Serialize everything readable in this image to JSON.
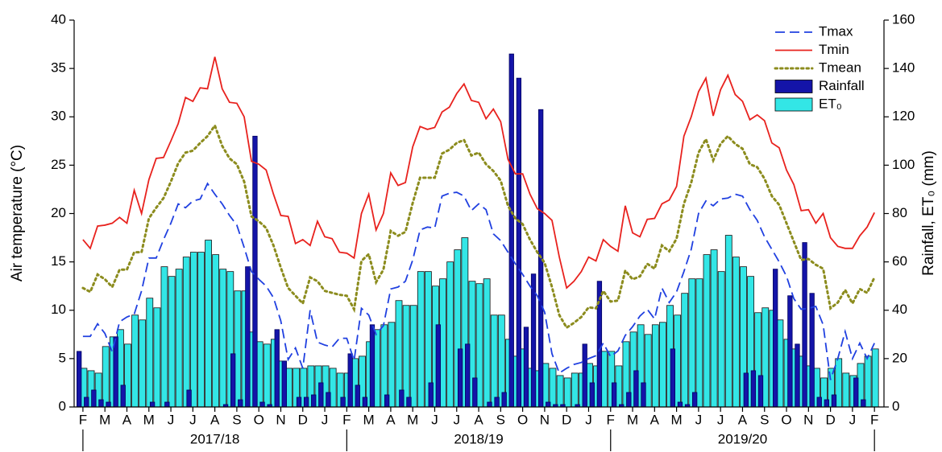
{
  "chart_data": {
    "type": "combo",
    "y_label": "Air temperature (°C)",
    "y2_label": "Rainfall, ET₀ (mm)",
    "legend": "upper right",
    "x": [
      0,
      1,
      2,
      3,
      4,
      5,
      6,
      7,
      8,
      9,
      10,
      11,
      12,
      13,
      14,
      15,
      16,
      17,
      18,
      19,
      20,
      21,
      22,
      23,
      24,
      25,
      26,
      27,
      28,
      29,
      30,
      31,
      32,
      33,
      34,
      35,
      36,
      37,
      38,
      39,
      40,
      41,
      42,
      43,
      44,
      45,
      46,
      47,
      48,
      49,
      50,
      51,
      52,
      53,
      54,
      55,
      56,
      57,
      58,
      59,
      60,
      61,
      62,
      63,
      64,
      65,
      66,
      67,
      68,
      69,
      70,
      71,
      72,
      73,
      74,
      75,
      76,
      77,
      78,
      79,
      80,
      81,
      82,
      83,
      84,
      85,
      86,
      87,
      88,
      89,
      90,
      91,
      92,
      93,
      94,
      95,
      96,
      97,
      98,
      99,
      100,
      101,
      102,
      103,
      104,
      105,
      106,
      107,
      108
    ],
    "xlim": [
      -1.2,
      109.3
    ],
    "xticks": [
      {
        "value": 0,
        "label": "F"
      },
      {
        "value": 3,
        "label": "M"
      },
      {
        "value": 6,
        "label": "A"
      },
      {
        "value": 9,
        "label": "M"
      },
      {
        "value": 12,
        "label": "J"
      },
      {
        "value": 15,
        "label": "J"
      },
      {
        "value": 18,
        "label": "A"
      },
      {
        "value": 21,
        "label": "S"
      },
      {
        "value": 24,
        "label": "O"
      },
      {
        "value": 27,
        "label": "N"
      },
      {
        "value": 30,
        "label": "D"
      },
      {
        "value": 33,
        "label": "J"
      },
      {
        "value": 36,
        "label": "F"
      },
      {
        "value": 39,
        "label": "M"
      },
      {
        "value": 42,
        "label": "A"
      },
      {
        "value": 45,
        "label": "M"
      },
      {
        "value": 48,
        "label": "J"
      },
      {
        "value": 51,
        "label": "J"
      },
      {
        "value": 54,
        "label": "A"
      },
      {
        "value": 57,
        "label": "S"
      },
      {
        "value": 60,
        "label": "O"
      },
      {
        "value": 63,
        "label": "N"
      },
      {
        "value": 66,
        "label": "D"
      },
      {
        "value": 69,
        "label": "J"
      },
      {
        "value": 72,
        "label": "F"
      },
      {
        "value": 75,
        "label": "M"
      },
      {
        "value": 78,
        "label": "A"
      },
      {
        "value": 81,
        "label": "M"
      },
      {
        "value": 84,
        "label": "J"
      },
      {
        "value": 87,
        "label": "J"
      },
      {
        "value": 90,
        "label": "A"
      },
      {
        "value": 93,
        "label": "S"
      },
      {
        "value": 96,
        "label": "O"
      },
      {
        "value": 99,
        "label": "N"
      },
      {
        "value": 102,
        "label": "D"
      },
      {
        "value": 105,
        "label": "J"
      },
      {
        "value": 108,
        "label": "F"
      }
    ],
    "seasons": [
      "2017/18",
      "2018/19",
      "2019/20"
    ],
    "ylim": [
      0,
      40
    ],
    "yticks": [
      0,
      5,
      10,
      15,
      20,
      25,
      30,
      35,
      40
    ],
    "y2lim": [
      0,
      160
    ],
    "y2ticks": [
      0,
      20,
      40,
      60,
      80,
      100,
      120,
      140,
      160
    ],
    "series": [
      {
        "name": "ET₀",
        "type": "bar",
        "axis": "y2",
        "color": "#33e6e6",
        "values": [
          16,
          15,
          14,
          25,
          29,
          32,
          26,
          38,
          36,
          45,
          41,
          58,
          54,
          57,
          62,
          64,
          64,
          69,
          63,
          57,
          56,
          48,
          48,
          31,
          27,
          26,
          28,
          19,
          16,
          16,
          16,
          17,
          17,
          17,
          16,
          14,
          14,
          20,
          21,
          27,
          32,
          34,
          35,
          44,
          42,
          42,
          56,
          56,
          50,
          53,
          60,
          65,
          70,
          52,
          51,
          53,
          38,
          38,
          28,
          21,
          24,
          16,
          15,
          18,
          16,
          13,
          12,
          14,
          14,
          18,
          17,
          23,
          23,
          17,
          27,
          31,
          34,
          30,
          34,
          35,
          42,
          38,
          47,
          53,
          53,
          63,
          65,
          56,
          71,
          62,
          58,
          54,
          39,
          41,
          40,
          36,
          28,
          24,
          21,
          17,
          16,
          12,
          16,
          20,
          14,
          13,
          18,
          21,
          24
        ]
      },
      {
        "name": "Rainfall",
        "type": "bar",
        "axis": "y2",
        "color": "#1414a8",
        "values": [
          23,
          4,
          7,
          3,
          2,
          29,
          9,
          0,
          0,
          0,
          2,
          0,
          2,
          0,
          0,
          7,
          0,
          0,
          0,
          0,
          1,
          22,
          3,
          58,
          112,
          2,
          1,
          32,
          19,
          0,
          4,
          4,
          5,
          10,
          6,
          0,
          4,
          22,
          9,
          4,
          34,
          0,
          5,
          0,
          7,
          4,
          0,
          0,
          10,
          34,
          0,
          0,
          24,
          26,
          12,
          0,
          2,
          4,
          6,
          146,
          136,
          33,
          55,
          123,
          2,
          1,
          1,
          0,
          1,
          26,
          10,
          52,
          0,
          10,
          1,
          6,
          15,
          10,
          0,
          0,
          0,
          24,
          2,
          1,
          6,
          0,
          0,
          0,
          0,
          0,
          0,
          14,
          15,
          13,
          0,
          57,
          0,
          46,
          26,
          68,
          47,
          4,
          3,
          5,
          0,
          0,
          12,
          3,
          0
        ]
      },
      {
        "name": "Tmax",
        "type": "line",
        "style": "dashed",
        "color": "#2040e0",
        "values": [
          7.3,
          7.3,
          8.6,
          7.6,
          5.7,
          8.8,
          9.3,
          9.6,
          12.0,
          15.4,
          15.4,
          17.3,
          19.0,
          21.0,
          20.6,
          21.3,
          21.5,
          23.1,
          22.0,
          21.0,
          19.8,
          18.8,
          16.5,
          14.0,
          13.2,
          12.5,
          11.3,
          8.9,
          4.9,
          6.1,
          4.0,
          10.0,
          6.7,
          6.4,
          6.2,
          7.1,
          7.1,
          4.8,
          10.2,
          9.5,
          7.5,
          8.4,
          12.2,
          12.4,
          13.0,
          15.2,
          18.3,
          18.6,
          18.5,
          21.8,
          22.1,
          22.2,
          21.8,
          20.3,
          21.0,
          20.4,
          17.9,
          17.2,
          16.0,
          14.8,
          13.7,
          12.5,
          11.5,
          9.8,
          5.5,
          3.5,
          4.0,
          4.4,
          4.6,
          5.0,
          5.3,
          6.6,
          5.2,
          5.8,
          7.4,
          8.3,
          9.4,
          10.1,
          9.1,
          12.3,
          10.8,
          11.9,
          14.0,
          16.3,
          20.0,
          21.3,
          20.8,
          21.5,
          21.6,
          22.0,
          21.8,
          20.4,
          19.3,
          17.6,
          16.3,
          15.0,
          13.5,
          11.2,
          10.1,
          10.2,
          10.4,
          8.5,
          2.8,
          5.0,
          7.8,
          5.0,
          6.6,
          5.0,
          6.6
        ]
      },
      {
        "name": "Tmin",
        "type": "line",
        "style": "solid",
        "color": "#e8221e",
        "values": [
          17.3,
          16.4,
          18.7,
          18.8,
          19.0,
          19.6,
          19.0,
          22.4,
          20.0,
          23.5,
          25.7,
          25.8,
          27.5,
          29.3,
          32.0,
          31.6,
          33.0,
          32.9,
          36.2,
          32.9,
          31.5,
          31.4,
          30.0,
          25.4,
          25.1,
          24.5,
          22.0,
          19.8,
          19.7,
          16.9,
          17.3,
          16.7,
          19.2,
          17.6,
          17.4,
          16.0,
          15.9,
          15.4,
          20.0,
          22.0,
          18.3,
          20.0,
          24.2,
          22.9,
          23.2,
          26.9,
          29.0,
          28.7,
          28.9,
          30.5,
          31.0,
          32.4,
          33.4,
          31.7,
          31.5,
          29.8,
          30.8,
          29.5,
          25.6,
          24.1,
          24.1,
          22.0,
          20.5,
          20.0,
          19.3,
          15.5,
          12.3,
          13.0,
          14.0,
          15.5,
          15.1,
          17.3,
          16.6,
          16.1,
          20.8,
          18.0,
          17.6,
          19.4,
          19.5,
          21.0,
          21.4,
          22.8,
          28.0,
          30.0,
          32.6,
          34.0,
          30.1,
          32.8,
          34.3,
          32.3,
          31.6,
          29.7,
          30.2,
          29.6,
          27.3,
          26.8,
          24.5,
          23.0,
          20.3,
          20.4,
          19.0,
          20.0,
          17.5,
          16.6,
          16.4,
          16.4,
          17.7,
          18.6,
          20.1
        ]
      },
      {
        "name": "Tmean",
        "type": "line",
        "style": "dotted",
        "color": "#8c8c1e",
        "values": [
          12.3,
          11.9,
          13.7,
          13.2,
          12.4,
          14.2,
          14.2,
          16.0,
          16.0,
          19.5,
          20.6,
          21.6,
          23.3,
          25.2,
          26.3,
          26.5,
          27.3,
          28.0,
          29.1,
          27.0,
          25.7,
          25.1,
          23.3,
          19.7,
          19.2,
          18.5,
          16.7,
          14.4,
          12.3,
          11.5,
          10.7,
          13.4,
          13.0,
          12.0,
          11.8,
          11.6,
          11.5,
          10.1,
          15.1,
          15.8,
          12.9,
          14.2,
          18.2,
          17.7,
          18.1,
          21.1,
          23.7,
          23.7,
          23.7,
          26.2,
          26.6,
          27.3,
          27.6,
          26.0,
          26.3,
          25.1,
          24.4,
          23.4,
          20.8,
          19.5,
          18.9,
          17.3,
          16.0,
          14.9,
          12.4,
          9.5,
          8.2,
          8.7,
          9.3,
          10.3,
          10.2,
          12.0,
          10.9,
          11.0,
          14.1,
          13.2,
          13.5,
          14.8,
          14.3,
          16.7,
          16.1,
          17.4,
          21.0,
          23.2,
          26.3,
          27.7,
          25.5,
          27.2,
          28.0,
          27.2,
          26.7,
          25.1,
          24.8,
          23.6,
          21.8,
          20.9,
          19.0,
          17.1,
          15.2,
          15.3,
          14.7,
          14.3,
          10.2,
          10.8,
          12.1,
          10.7,
          12.2,
          11.8,
          13.4
        ]
      }
    ]
  }
}
